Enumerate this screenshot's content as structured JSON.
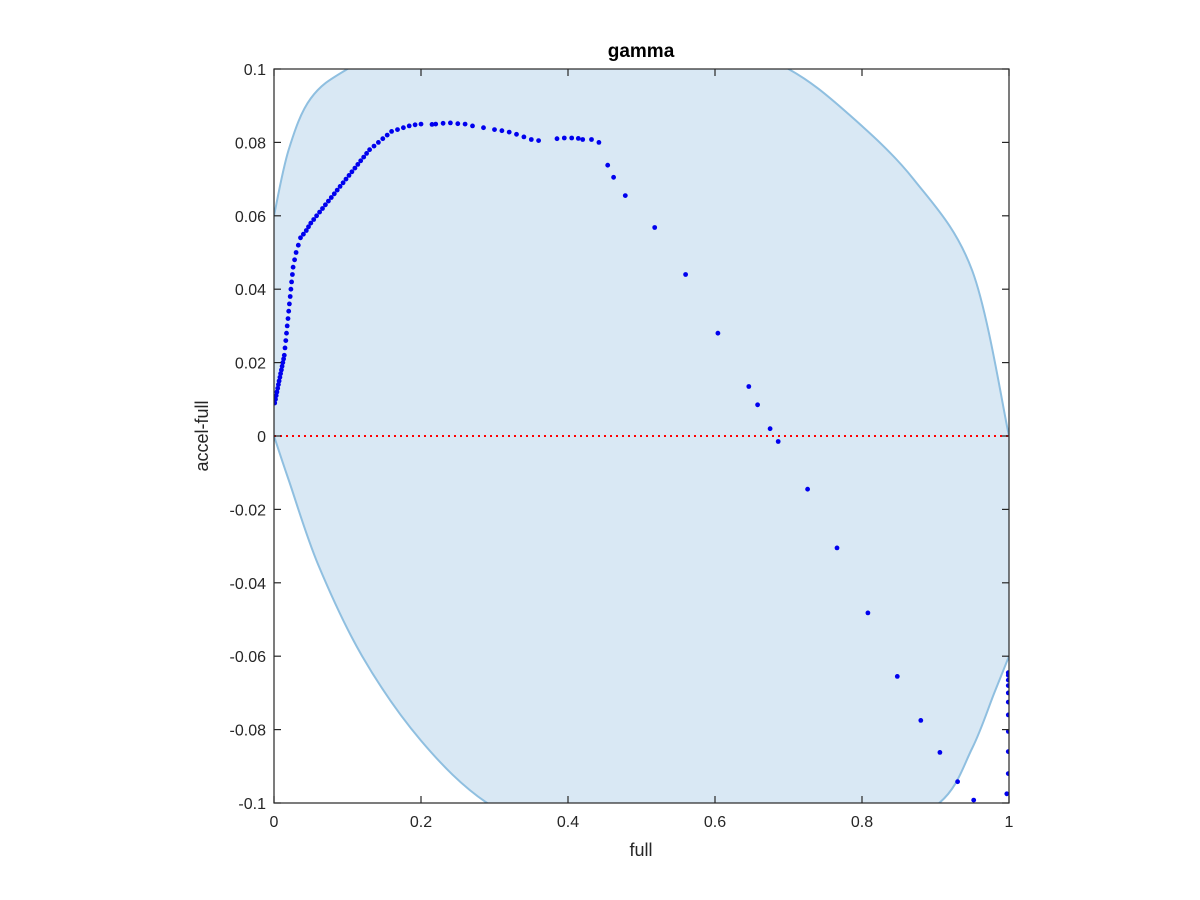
{
  "chart_data": {
    "type": "scatter",
    "title": "gamma",
    "xlabel": "full",
    "ylabel": "accel-full",
    "xlim": [
      0,
      1
    ],
    "ylim": [
      -0.1,
      0.1
    ],
    "x_ticks": [
      "0",
      "0.2",
      "0.4",
      "0.6",
      "0.8",
      "1"
    ],
    "x_tick_values": [
      0,
      0.2,
      0.4,
      0.6,
      0.8,
      1
    ],
    "y_ticks": [
      "-0.1",
      "-0.08",
      "-0.06",
      "-0.04",
      "-0.02",
      "0",
      "0.02",
      "0.04",
      "0.06",
      "0.08",
      "0.1"
    ],
    "y_tick_values": [
      -0.1,
      -0.08,
      -0.06,
      -0.04,
      -0.02,
      0,
      0.02,
      0.04,
      0.06,
      0.08,
      0.1
    ],
    "grid": false,
    "legend": "none",
    "reference_line": {
      "y": 0,
      "style": "dotted",
      "color": "#ff0000"
    },
    "region": {
      "fill": "#d9e8f4",
      "edge": "#8fbfe0",
      "upper": [
        [
          0,
          0.06
        ],
        [
          0.02,
          0.078
        ],
        [
          0.05,
          0.092
        ],
        [
          0.1,
          0.1
        ],
        [
          0.2,
          0.11
        ],
        [
          0.35,
          0.115
        ],
        [
          0.5,
          0.114
        ],
        [
          0.6,
          0.108
        ],
        [
          0.7,
          0.1
        ],
        [
          0.78,
          0.088
        ],
        [
          0.87,
          0.07
        ],
        [
          0.95,
          0.045
        ],
        [
          1,
          0
        ]
      ],
      "lower": [
        [
          1,
          -0.06
        ],
        [
          0.98,
          -0.07
        ],
        [
          0.95,
          -0.085
        ],
        [
          0.905,
          -0.1
        ],
        [
          0.8,
          -0.11
        ],
        [
          0.65,
          -0.115
        ],
        [
          0.5,
          -0.115
        ],
        [
          0.4,
          -0.11
        ],
        [
          0.29,
          -0.1
        ],
        [
          0.2,
          -0.083
        ],
        [
          0.12,
          -0.06
        ],
        [
          0.06,
          -0.035
        ],
        [
          0.02,
          -0.012
        ],
        [
          0,
          0
        ]
      ]
    },
    "series": [
      {
        "color": "#0000ee",
        "points": [
          [
            0.001,
            0.009
          ],
          [
            0.002,
            0.01
          ],
          [
            0.003,
            0.011
          ],
          [
            0.004,
            0.012
          ],
          [
            0.005,
            0.013
          ],
          [
            0.006,
            0.014
          ],
          [
            0.007,
            0.015
          ],
          [
            0.008,
            0.016
          ],
          [
            0.009,
            0.017
          ],
          [
            0.01,
            0.018
          ],
          [
            0.011,
            0.019
          ],
          [
            0.012,
            0.02
          ],
          [
            0.013,
            0.021
          ],
          [
            0.014,
            0.022
          ],
          [
            0.015,
            0.024
          ],
          [
            0.016,
            0.026
          ],
          [
            0.017,
            0.028
          ],
          [
            0.018,
            0.03
          ],
          [
            0.019,
            0.032
          ],
          [
            0.02,
            0.034
          ],
          [
            0.021,
            0.036
          ],
          [
            0.022,
            0.038
          ],
          [
            0.023,
            0.04
          ],
          [
            0.024,
            0.042
          ],
          [
            0.025,
            0.044
          ],
          [
            0.026,
            0.046
          ],
          [
            0.028,
            0.048
          ],
          [
            0.03,
            0.05
          ],
          [
            0.033,
            0.052
          ],
          [
            0.036,
            0.054
          ],
          [
            0.04,
            0.055
          ],
          [
            0.044,
            0.056
          ],
          [
            0.047,
            0.057
          ],
          [
            0.05,
            0.058
          ],
          [
            0.054,
            0.059
          ],
          [
            0.058,
            0.06
          ],
          [
            0.062,
            0.061
          ],
          [
            0.066,
            0.062
          ],
          [
            0.07,
            0.063
          ],
          [
            0.074,
            0.064
          ],
          [
            0.078,
            0.065
          ],
          [
            0.082,
            0.066
          ],
          [
            0.086,
            0.067
          ],
          [
            0.09,
            0.068
          ],
          [
            0.094,
            0.069
          ],
          [
            0.098,
            0.07
          ],
          [
            0.102,
            0.071
          ],
          [
            0.106,
            0.072
          ],
          [
            0.11,
            0.073
          ],
          [
            0.114,
            0.074
          ],
          [
            0.118,
            0.075
          ],
          [
            0.122,
            0.076
          ],
          [
            0.126,
            0.077
          ],
          [
            0.13,
            0.078
          ],
          [
            0.136,
            0.079
          ],
          [
            0.142,
            0.08
          ],
          [
            0.148,
            0.081
          ],
          [
            0.154,
            0.082
          ],
          [
            0.16,
            0.083
          ],
          [
            0.168,
            0.0835
          ],
          [
            0.176,
            0.084
          ],
          [
            0.184,
            0.0845
          ],
          [
            0.192,
            0.0848
          ],
          [
            0.2,
            0.085
          ],
          [
            0.215,
            0.0849
          ],
          [
            0.22,
            0.085
          ],
          [
            0.23,
            0.0852
          ],
          [
            0.24,
            0.0853
          ],
          [
            0.25,
            0.0851
          ],
          [
            0.26,
            0.085
          ],
          [
            0.27,
            0.0845
          ],
          [
            0.285,
            0.084
          ],
          [
            0.3,
            0.0835
          ],
          [
            0.31,
            0.0832
          ],
          [
            0.32,
            0.0828
          ],
          [
            0.33,
            0.0822
          ],
          [
            0.34,
            0.0815
          ],
          [
            0.35,
            0.0808
          ],
          [
            0.36,
            0.0805
          ],
          [
            0.385,
            0.081
          ],
          [
            0.395,
            0.0812
          ],
          [
            0.405,
            0.0812
          ],
          [
            0.414,
            0.0811
          ],
          [
            0.42,
            0.0808
          ],
          [
            0.432,
            0.0808
          ],
          [
            0.442,
            0.08
          ],
          [
            0.454,
            0.0738
          ],
          [
            0.462,
            0.0705
          ],
          [
            0.478,
            0.0655
          ],
          [
            0.518,
            0.0568
          ],
          [
            0.56,
            0.044
          ],
          [
            0.604,
            0.028
          ],
          [
            0.646,
            0.0135
          ],
          [
            0.658,
            0.0085
          ],
          [
            0.675,
            0.002
          ],
          [
            0.686,
            -0.0015
          ],
          [
            0.726,
            -0.0145
          ],
          [
            0.766,
            -0.0305
          ],
          [
            0.808,
            -0.0482
          ],
          [
            0.848,
            -0.0655
          ],
          [
            0.88,
            -0.0775
          ],
          [
            0.906,
            -0.0862
          ],
          [
            0.93,
            -0.0942
          ],
          [
            0.952,
            -0.0992
          ],
          [
            0.997,
            -0.0975
          ],
          [
            0.999,
            -0.092
          ],
          [
            0.999,
            -0.086
          ],
          [
            0.999,
            -0.0805
          ],
          [
            0.999,
            -0.076
          ],
          [
            0.999,
            -0.0725
          ],
          [
            0.999,
            -0.07
          ],
          [
            0.999,
            -0.068
          ],
          [
            0.999,
            -0.0665
          ],
          [
            0.999,
            -0.0652
          ],
          [
            0.999,
            -0.0645
          ]
        ]
      }
    ]
  }
}
